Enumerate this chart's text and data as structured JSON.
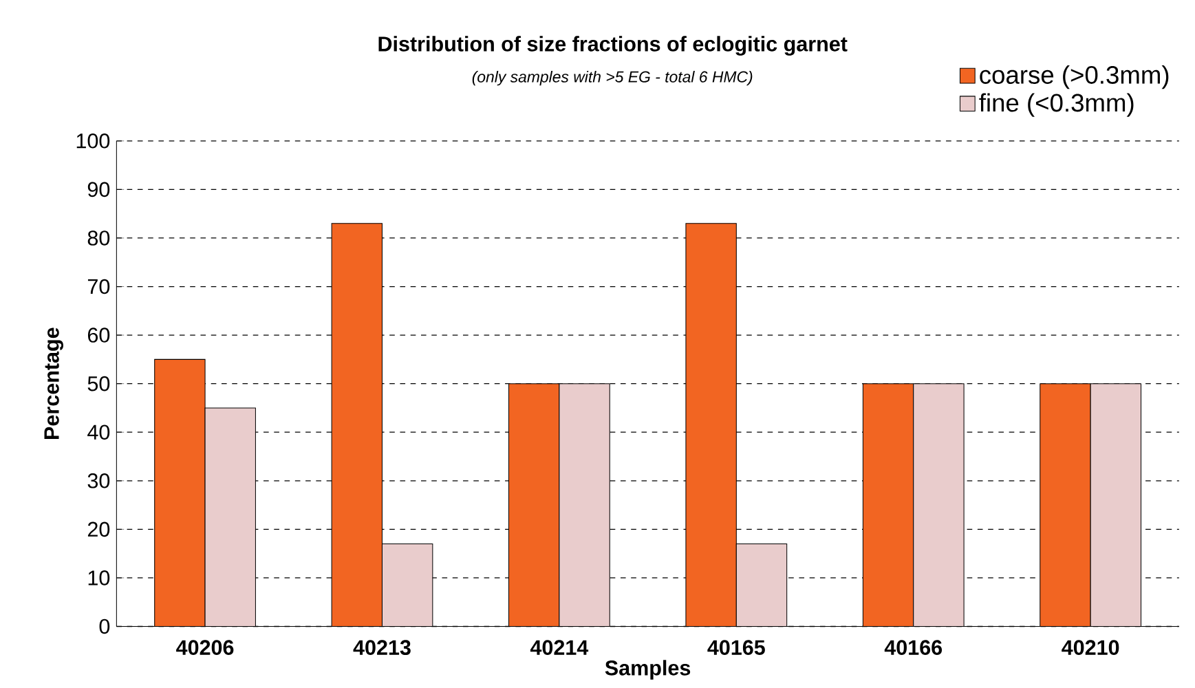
{
  "chart_data": {
    "type": "bar",
    "title": "Distribution of size fractions of eclogitic garnet",
    "subtitle": "(only samples with >5 EG - total 6 HMC)",
    "xlabel": "Samples",
    "ylabel": "Percentage",
    "categories": [
      "40206",
      "40213",
      "40214",
      "40165",
      "40166",
      "40210"
    ],
    "series": [
      {
        "name": "coarse (>0.3mm)",
        "color": "#f26522",
        "values": [
          55,
          83,
          50,
          83,
          50,
          50
        ]
      },
      {
        "name": "fine (<0.3mm)",
        "color": "#e9cccc",
        "values": [
          45,
          17,
          50,
          17,
          50,
          50
        ]
      }
    ],
    "ylim": [
      0,
      100
    ],
    "yticks": [
      0,
      10,
      20,
      30,
      40,
      50,
      60,
      70,
      80,
      90,
      100
    ],
    "grid": "y",
    "legend": "top right"
  }
}
